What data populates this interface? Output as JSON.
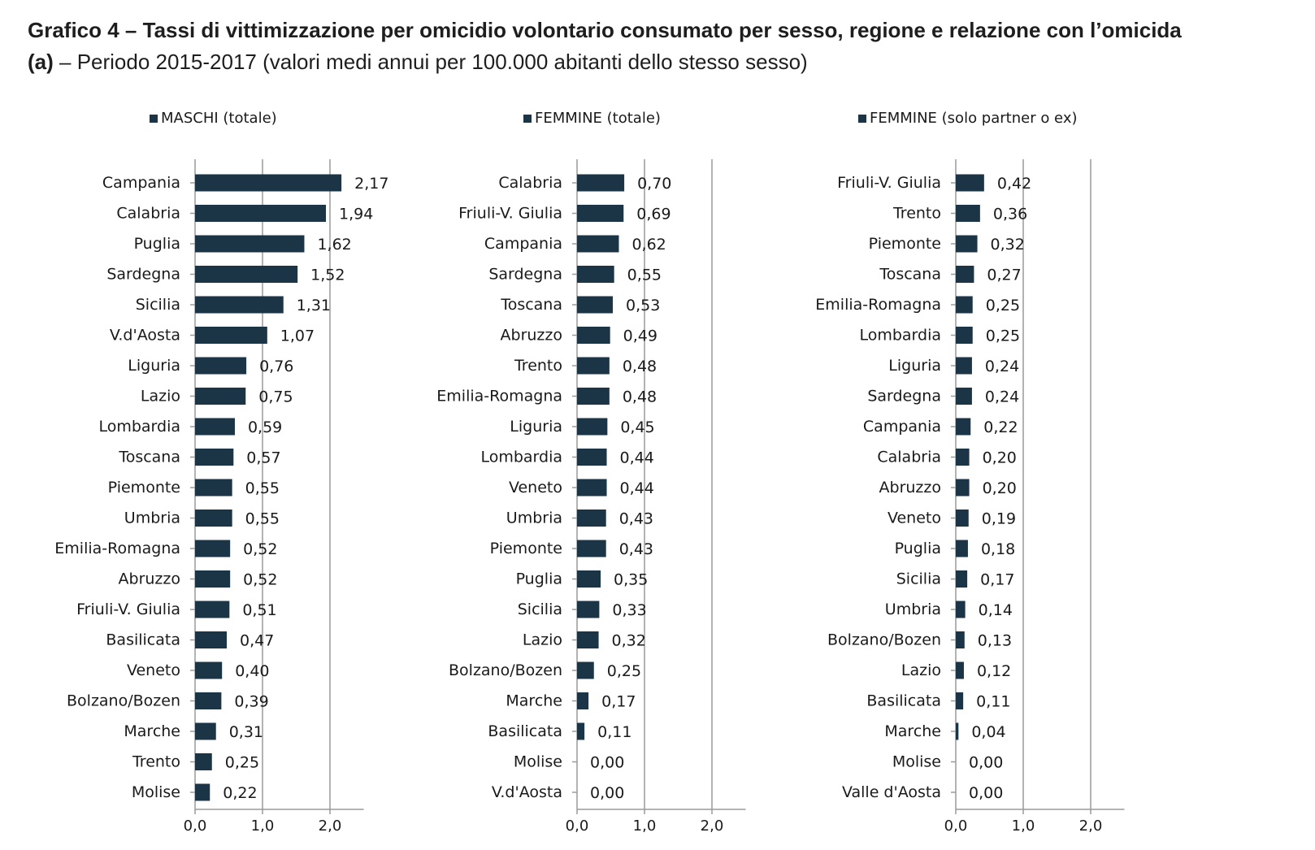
{
  "title": {
    "line1": "Grafico 4 – Tassi di vittimizzazione per omicidio volontario consumato per sesso, regione e relazione con l’omicida",
    "line2_tag": "(a)",
    "line2_rest": " – Periodo 2015-2017 (valori medi annui per 100.000 abitanti dello stesso sesso)"
  },
  "colors": {
    "bar": "#1b3446",
    "axis": "#9a9a9a"
  },
  "chart_data": [
    {
      "type": "bar",
      "orientation": "horizontal",
      "legend": "MASCHI (totale)",
      "legend_position": "top",
      "grid": true,
      "xlim": [
        0,
        2.5
      ],
      "xticks": [
        "0,0",
        "1,0",
        "2,0"
      ],
      "categories": [
        "Campania",
        "Calabria",
        "Puglia",
        "Sardegna",
        "Sicilia",
        "V.d'Aosta",
        "Liguria",
        "Lazio",
        "Lombardia",
        "Toscana",
        "Piemonte",
        "Umbria",
        "Emilia-Romagna",
        "Abruzzo",
        "Friuli-V. Giulia",
        "Basilicata",
        "Veneto",
        "Bolzano/Bozen",
        "Marche",
        "Trento",
        "Molise"
      ],
      "values": [
        2.17,
        1.94,
        1.62,
        1.52,
        1.31,
        1.07,
        0.76,
        0.75,
        0.59,
        0.57,
        0.55,
        0.55,
        0.52,
        0.52,
        0.51,
        0.47,
        0.4,
        0.39,
        0.31,
        0.25,
        0.22
      ],
      "labels": [
        "2,17",
        "1,94",
        "1,62",
        "1,52",
        "1,31",
        "1,07",
        "0,76",
        "0,75",
        "0,59",
        "0,57",
        "0,55",
        "0,55",
        "0,52",
        "0,52",
        "0,51",
        "0,47",
        "0,40",
        "0,39",
        "0,31",
        "0,25",
        "0,22"
      ]
    },
    {
      "type": "bar",
      "orientation": "horizontal",
      "legend": "FEMMINE (totale)",
      "legend_position": "top",
      "grid": true,
      "xlim": [
        0,
        2.5
      ],
      "xticks": [
        "0,0",
        "1,0",
        "2,0"
      ],
      "categories": [
        "Calabria",
        "Friuli-V. Giulia",
        "Campania",
        "Sardegna",
        "Toscana",
        "Abruzzo",
        "Trento",
        "Emilia-Romagna",
        "Liguria",
        "Lombardia",
        "Veneto",
        "Umbria",
        "Piemonte",
        "Puglia",
        "Sicilia",
        "Lazio",
        "Bolzano/Bozen",
        "Marche",
        "Basilicata",
        "Molise",
        "V.d'Aosta"
      ],
      "values": [
        0.7,
        0.69,
        0.62,
        0.55,
        0.53,
        0.49,
        0.48,
        0.48,
        0.45,
        0.44,
        0.44,
        0.43,
        0.43,
        0.35,
        0.33,
        0.32,
        0.25,
        0.17,
        0.11,
        0.0,
        0.0
      ],
      "labels": [
        "0,70",
        "0,69",
        "0,62",
        "0,55",
        "0,53",
        "0,49",
        "0,48",
        "0,48",
        "0,45",
        "0,44",
        "0,44",
        "0,43",
        "0,43",
        "0,35",
        "0,33",
        "0,32",
        "0,25",
        "0,17",
        "0,11",
        "0,00",
        "0,00"
      ]
    },
    {
      "type": "bar",
      "orientation": "horizontal",
      "legend": "FEMMINE (solo partner o ex)",
      "legend_position": "top",
      "grid": true,
      "xlim": [
        0,
        2.5
      ],
      "xticks": [
        "0,0",
        "1,0",
        "2,0"
      ],
      "categories": [
        "Friuli-V. Giulia",
        "Trento",
        "Piemonte",
        "Toscana",
        "Emilia-Romagna",
        "Lombardia",
        "Liguria",
        "Sardegna",
        "Campania",
        "Calabria",
        "Abruzzo",
        "Veneto",
        "Puglia",
        "Sicilia",
        "Umbria",
        "Bolzano/Bozen",
        "Lazio",
        "Basilicata",
        "Marche",
        "Molise",
        "Valle d'Aosta"
      ],
      "values": [
        0.42,
        0.36,
        0.32,
        0.27,
        0.25,
        0.25,
        0.24,
        0.24,
        0.22,
        0.2,
        0.2,
        0.19,
        0.18,
        0.17,
        0.14,
        0.13,
        0.12,
        0.11,
        0.04,
        0.0,
        0.0
      ],
      "labels": [
        "0,42",
        "0,36",
        "0,32",
        "0,27",
        "0,25",
        "0,25",
        "0,24",
        "0,24",
        "0,22",
        "0,20",
        "0,20",
        "0,19",
        "0,18",
        "0,17",
        "0,14",
        "0,13",
        "0,12",
        "0,11",
        "0,04",
        "0,00",
        "0,00"
      ]
    }
  ]
}
